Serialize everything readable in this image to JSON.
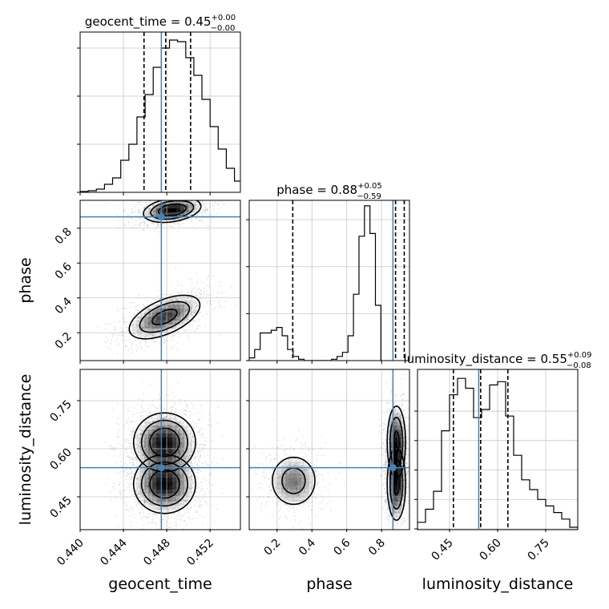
{
  "chart_data": {
    "type": "corner",
    "parameters": [
      "geocent_time",
      "phase",
      "luminosity_distance"
    ],
    "truths": {
      "geocent_time": 0.4475,
      "phase": 0.865,
      "luminosity_distance": 0.541
    },
    "colors": {
      "truth": "#4682b4",
      "hist": "#000000",
      "grid": "#c8c8c8"
    },
    "ranges": {
      "geocent_time": [
        0.44,
        0.4548
      ],
      "phase": [
        0.04,
        0.96
      ],
      "luminosity_distance": [
        0.35,
        0.85
      ]
    },
    "marginals": [
      {
        "param": "geocent_time",
        "title_main": "geocent_time = 0.45",
        "title_sup": "+0.00",
        "title_sub": "−0.00",
        "quantiles": [
          0.4459,
          0.4479,
          0.4502
        ],
        "edges_start": 0.44,
        "bin_width": 0.00075,
        "counts": [
          0.5,
          1,
          2,
          5,
          9,
          20,
          30,
          47,
          61,
          78,
          90,
          95,
          94,
          84,
          73,
          58,
          41,
          27,
          15,
          7,
          4,
          1
        ],
        "ymax": 100,
        "yticks": [
          0,
          30,
          60,
          90
        ]
      },
      {
        "param": "phase",
        "title_main": "phase = 0.88",
        "title_sup": "+0.05",
        "title_sub": "−0.59",
        "quantiles": [
          0.29,
          0.88,
          0.93
        ],
        "edges_start": 0.04,
        "bin_width": 0.0315,
        "counts": [
          1,
          4,
          10,
          10,
          11,
          12,
          9,
          4,
          1.5,
          0.5,
          0,
          0,
          0,
          0,
          0,
          0.5,
          1.5,
          3,
          9,
          24,
          45,
          56,
          46,
          20
        ],
        "ymax": 58,
        "yticks": [
          0,
          17,
          34,
          51
        ]
      },
      {
        "param": "luminosity_distance",
        "title_main": "luminosity_distance = 0.55",
        "title_sup": "+0.09",
        "title_sub": "−0.08",
        "quantiles": [
          0.462,
          0.547,
          0.632
        ],
        "edges_start": 0.35,
        "bin_width": 0.025,
        "counts": [
          4,
          12,
          23,
          60,
          82,
          92,
          86,
          68,
          73,
          88,
          90,
          69,
          45,
          30,
          24,
          18,
          14,
          10,
          6,
          1
        ],
        "ymax": 98,
        "yticks": [
          0,
          18,
          36,
          54,
          72
        ]
      }
    ],
    "axes": {
      "geocent_time": {
        "label": "geocent_time",
        "ticks": [
          0.44,
          0.444,
          0.448,
          0.452
        ],
        "tick_labels": [
          "0.440",
          "0.444",
          "0.448",
          "0.452"
        ]
      },
      "phase": {
        "label": "phase",
        "ticks": [
          0.2,
          0.4,
          0.6,
          0.8
        ],
        "tick_labels": [
          "0.2",
          "0.4",
          "0.6",
          "0.8"
        ]
      },
      "luminosity_distance": {
        "label": "luminosity_distance",
        "ticks": [
          0.45,
          0.6,
          0.75
        ],
        "tick_labels": [
          "0.45",
          "0.60",
          "0.75"
        ]
      }
    },
    "modes": {
      "phase_vs_geocent": [
        {
          "cx": 0.4485,
          "cy": 0.905,
          "sx": 0.0013,
          "sy": 0.035,
          "w": 1.0,
          "rho": 0.3
        },
        {
          "cx": 0.4478,
          "cy": 0.29,
          "sx": 0.0017,
          "sy": 0.065,
          "w": 0.8,
          "rho": 0.55
        }
      ],
      "ld_vs_geocent": [
        {
          "cx": 0.4478,
          "cy": 0.62,
          "sx": 0.0014,
          "sy": 0.045,
          "w": 1.0,
          "rho": 0.0
        },
        {
          "cx": 0.4478,
          "cy": 0.49,
          "sx": 0.0014,
          "sy": 0.045,
          "w": 1.0,
          "rho": 0.0
        }
      ],
      "ld_vs_phase": [
        {
          "cx": 0.295,
          "cy": 0.5,
          "sx": 0.075,
          "sy": 0.045,
          "w": 0.5,
          "rho": 0.0
        },
        {
          "cx": 0.885,
          "cy": 0.62,
          "sx": 0.028,
          "sy": 0.06,
          "w": 0.75,
          "rho": 0.0
        },
        {
          "cx": 0.885,
          "cy": 0.49,
          "sx": 0.028,
          "sy": 0.06,
          "w": 0.75,
          "rho": 0.0
        }
      ]
    },
    "contour_levels": [
      0.65,
      0.35,
      0.15
    ]
  }
}
